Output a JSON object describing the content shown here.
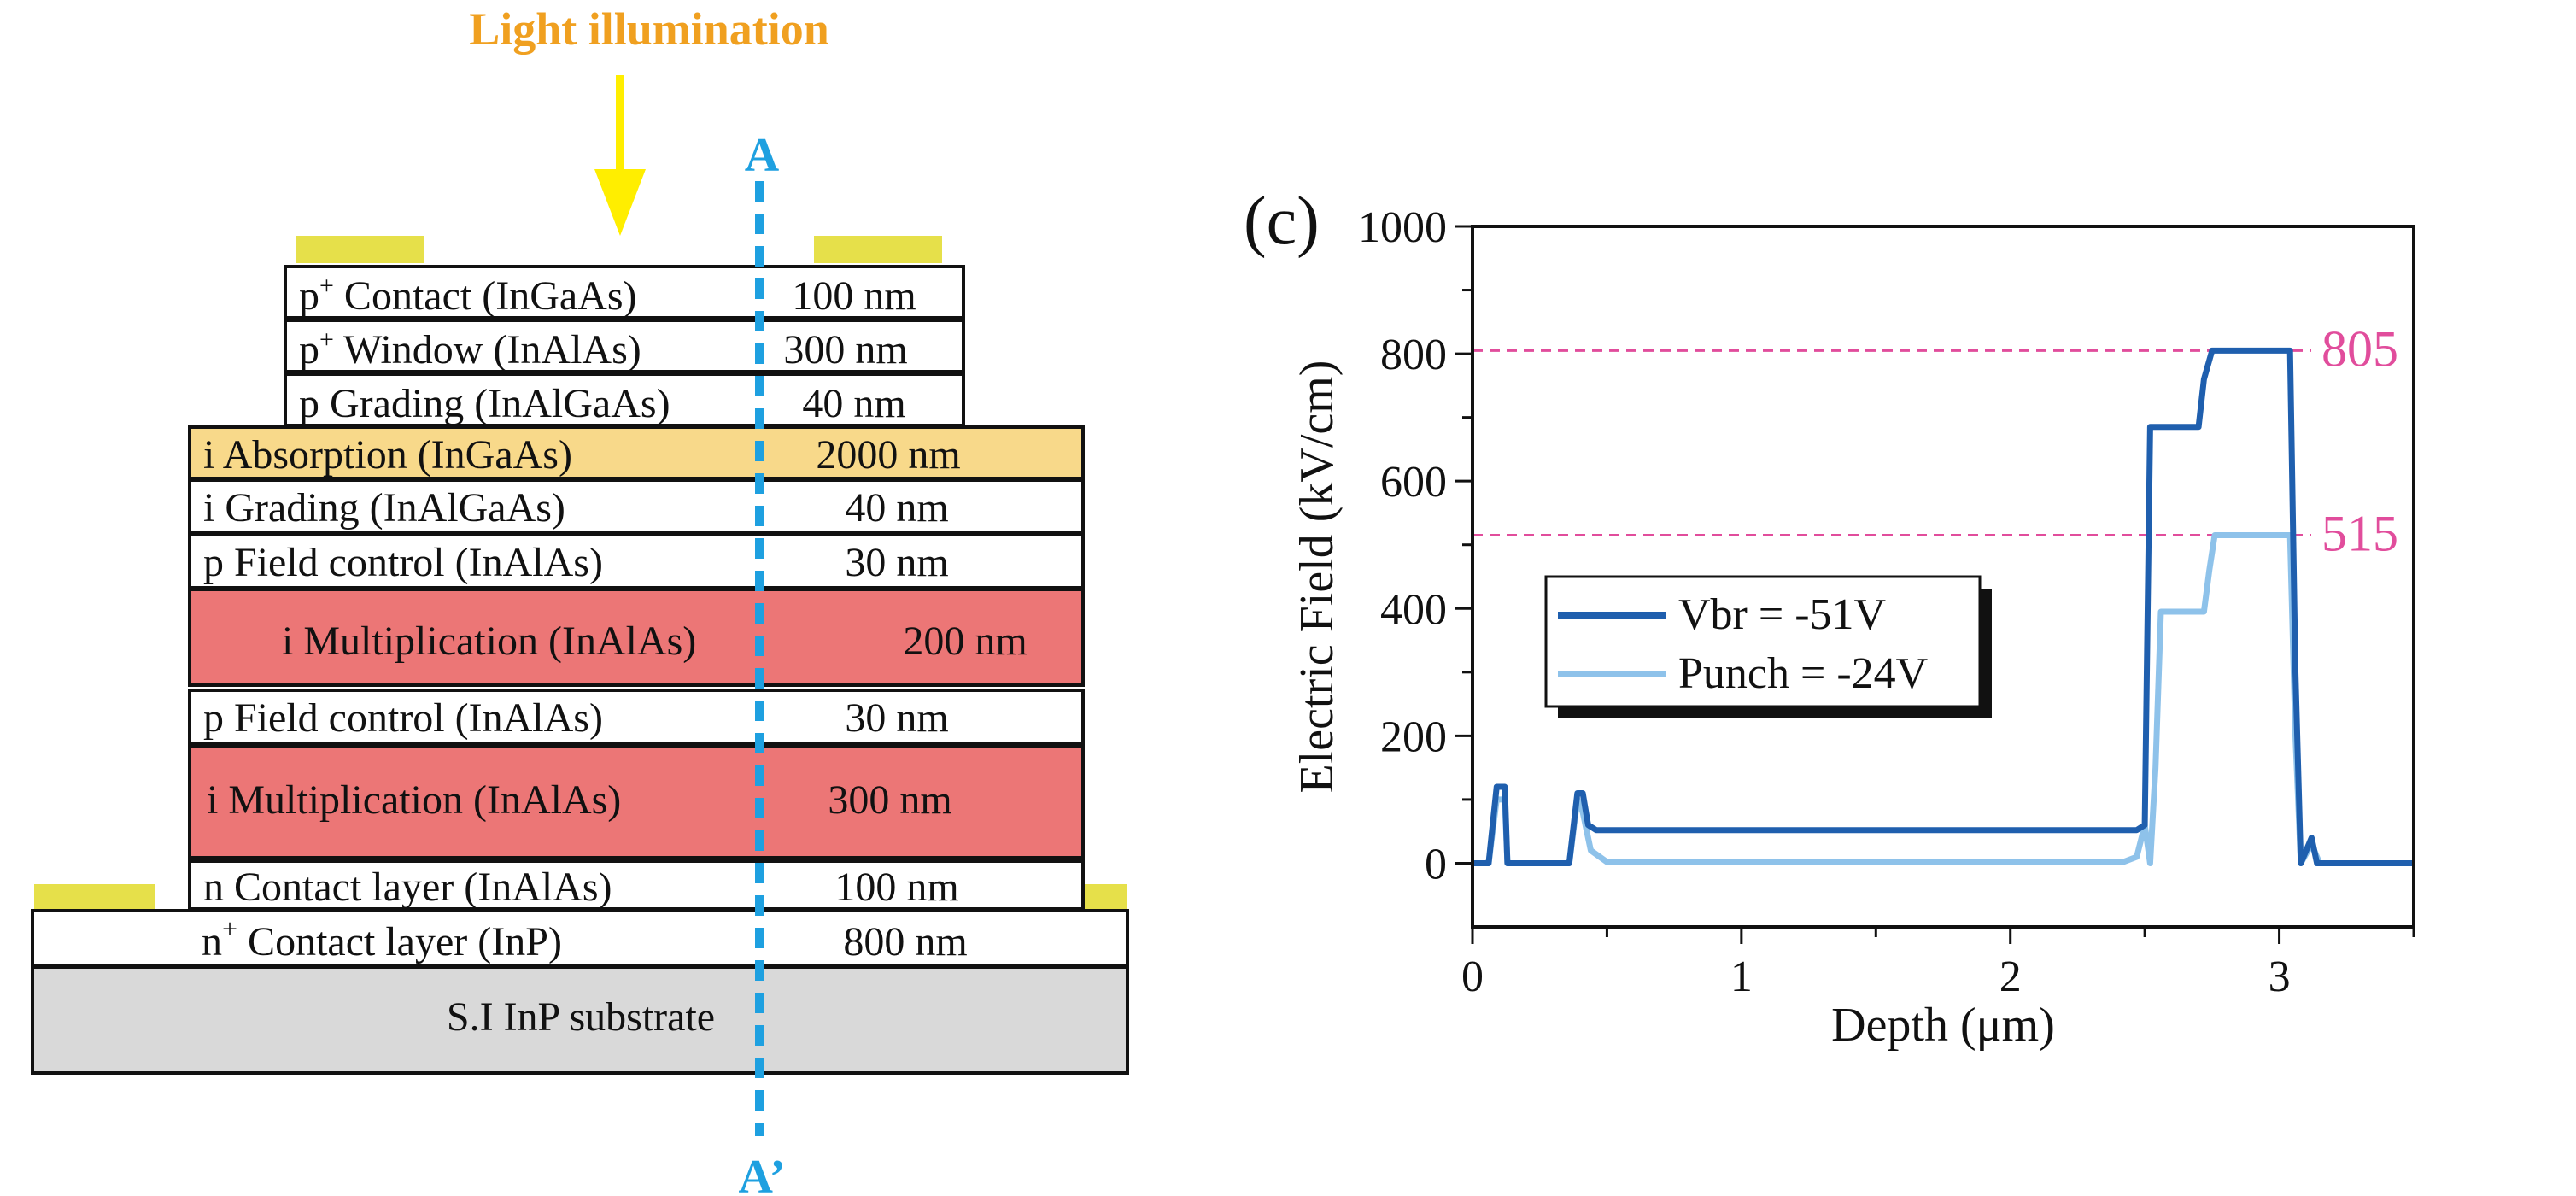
{
  "diagram": {
    "light_label": "Light illumination",
    "cut_top_label": "A",
    "cut_bottom_label": "A’",
    "layers": [
      {
        "id": "p-contact",
        "prefix": "p",
        "sup": "+",
        "rest": " Contact (InGaAs)",
        "thickness": "100 nm",
        "fill": "#ffffff"
      },
      {
        "id": "p-window",
        "prefix": "p",
        "sup": "+",
        "rest": " Window (InAlAs)",
        "thickness": "300 nm",
        "fill": "#ffffff"
      },
      {
        "id": "p-grading",
        "prefix": "",
        "sup": "",
        "rest": "p Grading (InAlGaAs)",
        "thickness": "40 nm",
        "fill": "#ffffff"
      },
      {
        "id": "i-absorption",
        "prefix": "",
        "sup": "",
        "rest": "i Absorption (InGaAs)",
        "thickness": "2000 nm",
        "fill": "#f8d98a"
      },
      {
        "id": "i-grading",
        "prefix": "",
        "sup": "",
        "rest": "i Grading (InAlGaAs)",
        "thickness": "40 nm",
        "fill": "#ffffff"
      },
      {
        "id": "p-field-control-1",
        "prefix": "",
        "sup": "",
        "rest": "p Field control (InAlAs)",
        "thickness": "30 nm",
        "fill": "#ffffff"
      },
      {
        "id": "i-multiplication-1",
        "prefix": "",
        "sup": "",
        "rest": "i Multiplication (InAlAs)",
        "thickness": "200 nm",
        "fill": "#ec7676"
      },
      {
        "id": "p-field-control-2",
        "prefix": "",
        "sup": "",
        "rest": "p Field control (InAlAs)",
        "thickness": "30 nm",
        "fill": "#ffffff"
      },
      {
        "id": "i-multiplication-2",
        "prefix": "",
        "sup": "",
        "rest": "i Multiplication (InAlAs)",
        "thickness": "300 nm",
        "fill": "#ec7676"
      },
      {
        "id": "n-contact",
        "prefix": "",
        "sup": "",
        "rest": "n Contact layer (InAlAs)",
        "thickness": "100 nm",
        "fill": "#ffffff"
      },
      {
        "id": "n-plus-contact",
        "prefix": "n",
        "sup": "+",
        "rest": " Contact layer (InP)",
        "thickness": "800 nm",
        "fill": "#ffffff"
      },
      {
        "id": "substrate",
        "prefix": "",
        "sup": "",
        "rest": "S.I InP substrate",
        "thickness": "",
        "fill": "#d9d9d9"
      }
    ],
    "colors": {
      "light": "#f0a020",
      "arrow": "#ffee00",
      "cut_line": "#1ea0e0",
      "metal": "#e6e04a",
      "outline": "#111111"
    }
  },
  "chart_data": {
    "type": "line",
    "panel_label": "(c)",
    "xlabel": "Depth (μm)",
    "ylabel": "Electric Field (kV/cm)",
    "xlim": [
      0,
      3.5
    ],
    "ylim": [
      -100,
      1000
    ],
    "xticks": [
      0,
      1,
      2,
      3
    ],
    "yticks": [
      0,
      200,
      400,
      600,
      800,
      1000
    ],
    "grid": false,
    "legend_position": "middle-left",
    "series": [
      {
        "name": "Vbr = -51V",
        "color": "#1f5fae",
        "x": [
          0.0,
          0.06,
          0.09,
          0.12,
          0.13,
          0.36,
          0.39,
          0.41,
          0.43,
          0.46,
          2.47,
          2.5,
          2.52,
          2.54,
          2.7,
          2.72,
          2.75,
          2.96,
          3.0,
          3.04,
          3.06,
          3.08,
          3.12,
          3.14,
          3.5
        ],
        "y": [
          0,
          0,
          120,
          120,
          0,
          0,
          110,
          110,
          60,
          52,
          52,
          60,
          685,
          685,
          685,
          760,
          805,
          805,
          805,
          805,
          300,
          0,
          40,
          0,
          0
        ]
      },
      {
        "name": "Punch = -24V",
        "color": "#8ec2ea",
        "x": [
          0.0,
          0.06,
          0.09,
          0.12,
          0.13,
          0.36,
          0.39,
          0.41,
          0.44,
          0.5,
          2.42,
          2.47,
          2.5,
          2.52,
          2.54,
          2.56,
          2.72,
          2.74,
          2.76,
          3.04,
          3.06,
          3.08,
          3.12,
          3.15,
          3.5
        ],
        "y": [
          0,
          0,
          100,
          100,
          0,
          0,
          100,
          80,
          20,
          2,
          2,
          10,
          60,
          0,
          150,
          395,
          395,
          460,
          515,
          515,
          200,
          0,
          30,
          0,
          0
        ]
      }
    ],
    "reference_lines": [
      {
        "value": 805,
        "label": "805",
        "color": "#e14d9c"
      },
      {
        "value": 515,
        "label": "515",
        "color": "#e14d9c"
      }
    ]
  }
}
